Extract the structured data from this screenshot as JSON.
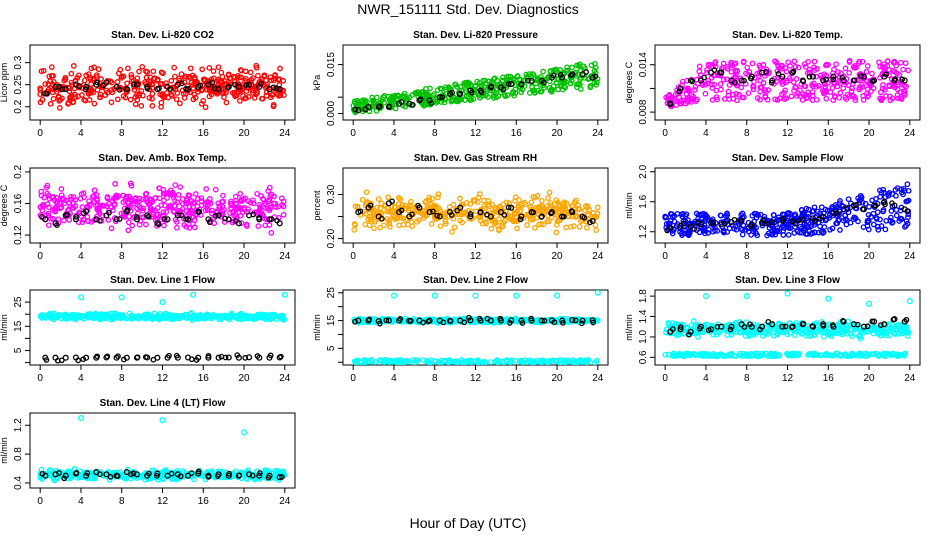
{
  "main_title": "NWR_151111  Std. Dev. Diagnostics",
  "x_label": "Hour of Day (UTC)",
  "chart_data": [
    {
      "type": "scatter",
      "title": "Stan. Dev. Li-820 CO2",
      "ylabel": "Licor ppm",
      "x_ticks": [
        0,
        4,
        8,
        12,
        16,
        20,
        24
      ],
      "y_ticks": [
        0.2,
        0.25,
        0.3
      ],
      "ylim": [
        0.17,
        0.34
      ],
      "color": "#ff0000",
      "series": [
        {
          "color": "#ff0000",
          "kind": "band",
          "lo": 0.19,
          "hi": 0.3,
          "mean": 0.245
        },
        {
          "color": "#000000",
          "kind": "hourly",
          "values": [
            0.23,
            0.245,
            0.24,
            0.25,
            0.245,
            0.25,
            0.255,
            0.245,
            0.24,
            0.25,
            0.245,
            0.24,
            0.245,
            0.25,
            0.24,
            0.245,
            0.25,
            0.24,
            0.245,
            0.245,
            0.25,
            0.245,
            0.24,
            0.24
          ]
        }
      ]
    },
    {
      "type": "scatter",
      "title": "Stan. Dev. Li-820 Pressure",
      "ylabel": "kPa",
      "x_ticks": [
        0,
        4,
        8,
        12,
        16,
        20,
        24
      ],
      "y_ticks": [
        0,
        0.005,
        0.015
      ],
      "y_tick_labels": [
        "0.000",
        "",
        "0.015"
      ],
      "ylim": [
        -0.002,
        0.021
      ],
      "color": "#00c000",
      "series": [
        {
          "color": "#00c000",
          "kind": "trend",
          "lo0": 0.0,
          "hi0": 0.004,
          "lo1": 0.008,
          "hi1": 0.016
        },
        {
          "color": "#000000",
          "kind": "hourly",
          "values": [
            0.001,
            0.002,
            0.002,
            0.002,
            0.003,
            0.003,
            0.004,
            0.004,
            0.005,
            0.006,
            0.006,
            0.007,
            0.007,
            0.008,
            0.008,
            0.009,
            0.009,
            0.01,
            0.01,
            0.011,
            0.011,
            0.012,
            0.012,
            0.011
          ]
        }
      ]
    },
    {
      "type": "scatter",
      "title": "Stan. Dev. Li-820 Temp.",
      "ylabel": "degrees C",
      "x_ticks": [
        0,
        4,
        8,
        12,
        16,
        20,
        24
      ],
      "y_ticks": [
        0.008,
        0.011,
        0.014
      ],
      "y_tick_labels": [
        "0.008",
        "",
        "0.014"
      ],
      "ylim": [
        0.007,
        0.0165
      ],
      "color": "#ff00ff",
      "series": [
        {
          "color": "#ff00ff",
          "kind": "rise",
          "lo": 0.0095,
          "hi": 0.0145,
          "start": 0.0085
        },
        {
          "color": "#000000",
          "kind": "hourly",
          "values": [
            0.009,
            0.011,
            0.012,
            0.012,
            0.013,
            0.013,
            0.012,
            0.012,
            0.0125,
            0.013,
            0.012,
            0.0125,
            0.013,
            0.012,
            0.0125,
            0.012,
            0.0125,
            0.012,
            0.012,
            0.0125,
            0.012,
            0.0125,
            0.012,
            0.012
          ]
        }
      ]
    },
    {
      "type": "scatter",
      "title": "Stan. Dev. Amb. Box Temp.",
      "ylabel": "degrees C",
      "x_ticks": [
        0,
        4,
        8,
        12,
        16,
        20,
        24
      ],
      "y_ticks": [
        0.12,
        0.16,
        0.2
      ],
      "ylim": [
        0.11,
        0.205
      ],
      "color": "#ff00ff",
      "series": [
        {
          "color": "#ff00ff",
          "kind": "band",
          "lo": 0.12,
          "hi": 0.19,
          "mean": 0.155
        },
        {
          "color": "#000000",
          "kind": "hourly",
          "values": [
            0.14,
            0.135,
            0.145,
            0.14,
            0.15,
            0.14,
            0.145,
            0.14,
            0.15,
            0.14,
            0.145,
            0.135,
            0.14,
            0.145,
            0.14,
            0.15,
            0.14,
            0.145,
            0.14,
            0.135,
            0.145,
            0.14,
            0.14,
            0.135
          ]
        }
      ]
    },
    {
      "type": "scatter",
      "title": "Stan. Dev. Gas Stream RH",
      "ylabel": "percent",
      "x_ticks": [
        0,
        4,
        8,
        12,
        16,
        20,
        24
      ],
      "y_ticks": [
        0.2,
        0.25,
        0.3
      ],
      "y_tick_labels": [
        "0.20",
        "",
        "0.30"
      ],
      "ylim": [
        0.19,
        0.36
      ],
      "color": "#ffa500",
      "series": [
        {
          "color": "#ffa500",
          "kind": "band",
          "lo": 0.21,
          "hi": 0.32,
          "mean": 0.26
        },
        {
          "color": "#000000",
          "kind": "hourly",
          "values": [
            0.26,
            0.27,
            0.25,
            0.28,
            0.26,
            0.25,
            0.27,
            0.26,
            0.25,
            0.26,
            0.27,
            0.25,
            0.26,
            0.25,
            0.26,
            0.27,
            0.25,
            0.26,
            0.25,
            0.26,
            0.25,
            0.26,
            0.25,
            0.24
          ]
        }
      ]
    },
    {
      "type": "scatter",
      "title": "Stan. Dev. Sample Flow",
      "ylabel": "ml/min",
      "x_ticks": [
        0,
        4,
        8,
        12,
        16,
        20,
        24
      ],
      "y_ticks": [
        1.2,
        1.6,
        2.0
      ],
      "y_tick_labels": [
        "1.2",
        "1.6",
        "2.0"
      ],
      "ylim": [
        1.05,
        2.05
      ],
      "color": "#0000ff",
      "series": [
        {
          "color": "#0000ff",
          "kind": "rise2",
          "lo": 1.15,
          "hi": 1.45,
          "lo1": 1.25,
          "hi1": 1.85
        },
        {
          "color": "#000000",
          "kind": "hourly",
          "values": [
            1.25,
            1.28,
            1.27,
            1.3,
            1.32,
            1.3,
            1.33,
            1.35,
            1.3,
            1.32,
            1.33,
            1.35,
            1.34,
            1.36,
            1.38,
            1.4,
            1.45,
            1.5,
            1.55,
            1.5,
            1.55,
            1.6,
            1.55,
            1.5
          ]
        }
      ]
    },
    {
      "type": "scatter",
      "title": "Stan. Dev. Line 1 Flow",
      "ylabel": "ml/min",
      "x_ticks": [
        0,
        4,
        8,
        12,
        16,
        20,
        24
      ],
      "y_ticks": [
        0,
        5,
        10,
        15,
        20,
        25
      ],
      "y_tick_labels": [
        "",
        "5",
        "",
        "15",
        "",
        "25"
      ],
      "ylim": [
        -1,
        30
      ],
      "color": "#00ffff",
      "series": [
        {
          "color": "#00ffff",
          "kind": "band",
          "lo": 17.5,
          "hi": 21,
          "mean": 19
        },
        {
          "color": "#00ffff",
          "kind": "outliers",
          "points": [
            [
              4,
              27
            ],
            [
              8,
              27
            ],
            [
              12,
              25
            ],
            [
              15,
              28
            ],
            [
              24,
              28
            ]
          ]
        },
        {
          "color": "#000000",
          "kind": "hourly",
          "values": [
            2,
            2,
            2,
            2.1,
            2,
            2,
            2.1,
            2,
            2,
            2,
            2.1,
            2,
            2,
            2,
            2.1,
            2,
            2,
            2,
            2.1,
            2,
            2.2,
            2,
            2,
            2.1
          ]
        }
      ]
    },
    {
      "type": "scatter",
      "title": "Stan. Dev. Line 2 Flow",
      "ylabel": "ml/min",
      "x_ticks": [
        0,
        4,
        8,
        12,
        16,
        20,
        24
      ],
      "y_ticks": [
        0,
        5,
        10,
        15,
        20,
        25
      ],
      "y_tick_labels": [
        "",
        "5",
        "",
        "15",
        "",
        "25"
      ],
      "ylim": [
        -1,
        26
      ],
      "color": "#00ffff",
      "series": [
        {
          "color": "#00ffff",
          "kind": "band",
          "lo": 14,
          "hi": 16,
          "mean": 15
        },
        {
          "color": "#00ffff",
          "kind": "baseline",
          "value": 0.3
        },
        {
          "color": "#00ffff",
          "kind": "outliers",
          "points": [
            [
              4,
              24
            ],
            [
              8,
              24
            ],
            [
              12,
              24
            ],
            [
              16,
              24
            ],
            [
              20,
              24
            ],
            [
              24,
              25
            ]
          ]
        },
        {
          "color": "#000000",
          "kind": "hourly",
          "values": [
            15,
            15,
            14.8,
            15,
            15,
            14.9,
            15,
            15,
            15,
            14.9,
            15,
            15.1,
            15,
            15,
            15,
            15.1,
            15,
            15,
            15,
            15.1,
            15,
            15.2,
            15,
            15.1
          ]
        }
      ]
    },
    {
      "type": "scatter",
      "title": "Stan. Dev. Line 3 Flow",
      "ylabel": "ml/min",
      "x_ticks": [
        0,
        4,
        8,
        12,
        16,
        20,
        24
      ],
      "y_ticks": [
        0.6,
        1.0,
        1.4,
        1.8
      ],
      "y_tick_labels": [
        "0.6",
        "1.0",
        "1.4",
        "1.8"
      ],
      "ylim": [
        0.45,
        1.92
      ],
      "color": "#00ffff",
      "series": [
        {
          "color": "#00ffff",
          "kind": "band",
          "lo": 0.95,
          "hi": 1.35,
          "mean": 1.15
        },
        {
          "color": "#00ffff",
          "kind": "baseline",
          "value": 0.65
        },
        {
          "color": "#00ffff",
          "kind": "outliers",
          "points": [
            [
              4,
              1.8
            ],
            [
              8,
              1.8
            ],
            [
              12,
              1.85
            ],
            [
              16,
              1.75
            ],
            [
              20,
              1.65
            ],
            [
              24,
              1.7
            ]
          ]
        },
        {
          "color": "#000000",
          "kind": "hourly",
          "values": [
            1.1,
            1.15,
            1.1,
            1.2,
            1.15,
            1.2,
            1.2,
            1.25,
            1.2,
            1.2,
            1.25,
            1.2,
            1.2,
            1.25,
            1.2,
            1.25,
            1.2,
            1.3,
            1.25,
            1.2,
            1.3,
            1.25,
            1.35,
            1.3
          ]
        }
      ]
    },
    {
      "type": "scatter",
      "title": "Stan. Dev. Line 4 (LT) Flow",
      "ylabel": "ml/min",
      "x_ticks": [
        0,
        4,
        8,
        12,
        16,
        20,
        24
      ],
      "y_ticks": [
        0.4,
        0.8,
        1.2
      ],
      "y_tick_labels": [
        "0.4",
        "0.8",
        "1.2"
      ],
      "ylim": [
        0.33,
        1.37
      ],
      "color": "#00ffff",
      "series": [
        {
          "color": "#00ffff",
          "kind": "band",
          "lo": 0.42,
          "hi": 0.6,
          "mean": 0.51
        },
        {
          "color": "#00ffff",
          "kind": "outliers",
          "points": [
            [
              4,
              1.3
            ],
            [
              12,
              1.27
            ],
            [
              20,
              1.1
            ]
          ]
        },
        {
          "color": "#000000",
          "kind": "hourly",
          "values": [
            0.5,
            0.52,
            0.5,
            0.53,
            0.5,
            0.55,
            0.52,
            0.5,
            0.55,
            0.52,
            0.5,
            0.53,
            0.5,
            0.52,
            0.5,
            0.53,
            0.5,
            0.52,
            0.5,
            0.5,
            0.52,
            0.5,
            0.5,
            0.48
          ]
        }
      ]
    }
  ]
}
